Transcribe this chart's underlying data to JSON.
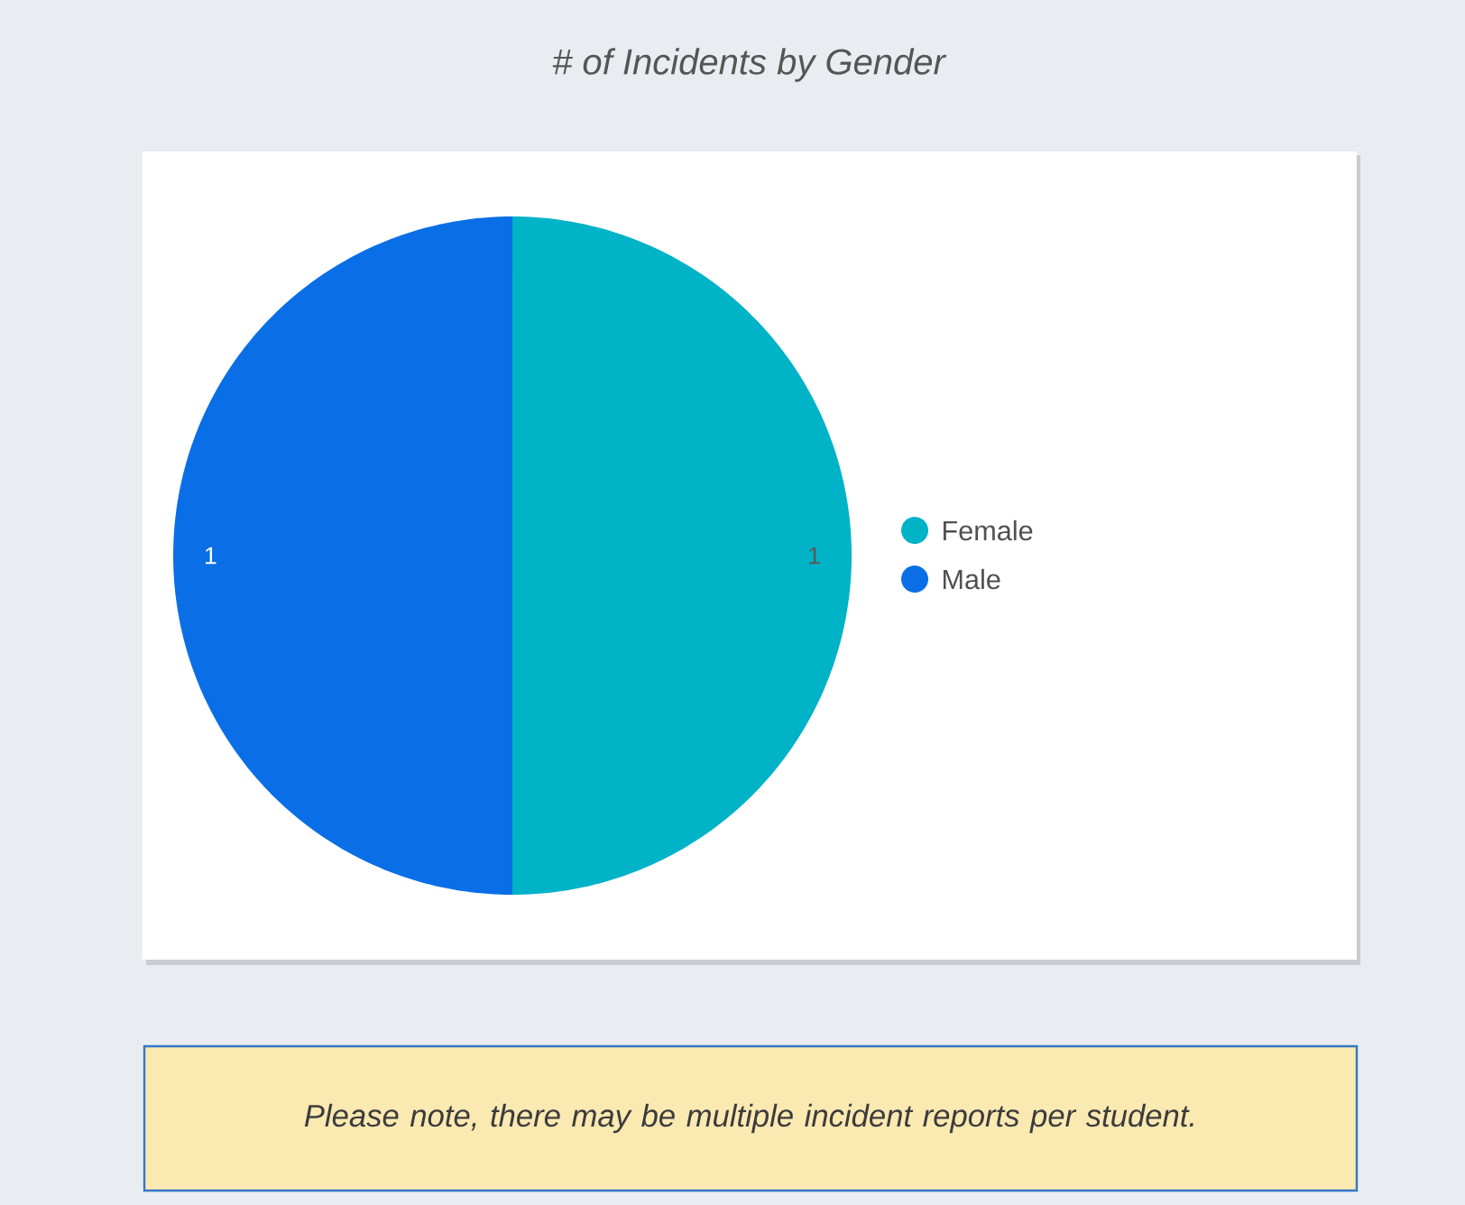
{
  "chart_data": {
    "type": "pie",
    "title": "# of Incidents by Gender",
    "categories": [
      "Female",
      "Male"
    ],
    "values": [
      1,
      1
    ],
    "colors": [
      "#00b3c7",
      "#0a6fe6"
    ],
    "data_labels": true,
    "legend": "right",
    "annotations": [
      "Please note, there may be multiple incident reports per student."
    ]
  }
}
